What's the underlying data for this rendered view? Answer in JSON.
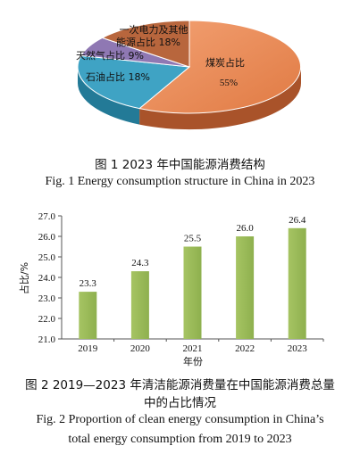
{
  "figures": {
    "fig1": {
      "caption_zh": "图 1  2023 年中国能源消费结构",
      "caption_en": "Fig. 1  Energy consumption structure in China in 2023"
    },
    "fig2": {
      "caption_zh_line1": "图 2  2019—2023 年清洁能源消费量在中国能源消费总量",
      "caption_zh_line2": "中的占比情况",
      "caption_en_line1": "Fig. 2 Proportion of clean energy consumption in China’s",
      "caption_en_line2": "total energy consumption from 2019 to 2023"
    }
  },
  "chart_data": [
    {
      "type": "pie",
      "slices": [
        {
          "name": "煤炭占比",
          "label": "55%",
          "value": 55,
          "color": "#e9864f"
        },
        {
          "name": "石油占比 18%",
          "value": 18,
          "color": "#3fa3c4"
        },
        {
          "name": "天然气占比 9%",
          "value": 9,
          "color": "#8f78b3"
        },
        {
          "name": "一次电力及其他能源占比 18%",
          "label_lines": [
            "一次电力及其他",
            "能源占比 18%"
          ],
          "value": 18,
          "color": "#b8663d"
        }
      ]
    },
    {
      "type": "bar",
      "categories": [
        "2019",
        "2020",
        "2021",
        "2022",
        "2023"
      ],
      "values": [
        23.3,
        24.3,
        25.5,
        26.0,
        26.4
      ],
      "value_labels": [
        "23.3",
        "24.3",
        "25.5",
        "26.0",
        "26.4"
      ],
      "xlabel": "年份",
      "ylabel": "占比/%",
      "ylim": [
        21.0,
        27.0
      ],
      "yticks": [
        "21.0",
        "22.0",
        "23.0",
        "24.0",
        "25.0",
        "26.0",
        "27.0"
      ],
      "bar_color": "#9bbb59",
      "grid": false
    }
  ]
}
